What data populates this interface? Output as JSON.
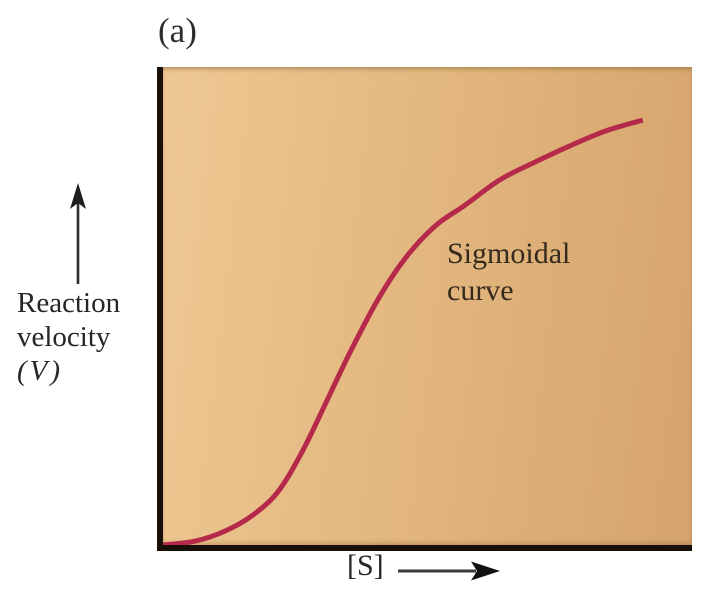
{
  "figure": {
    "panel_label": "(a)"
  },
  "y_axis": {
    "label_lines": [
      "Reaction",
      "velocity",
      "(V)"
    ],
    "arrow_icon": "up-arrow"
  },
  "x_axis": {
    "label": "[S]",
    "arrow_icon": "right-arrow"
  },
  "annotation": {
    "line1": "Sigmoidal",
    "line2": "curve"
  },
  "colors": {
    "curve": "#b5294a",
    "plot_gradient_start": "#eec893",
    "plot_gradient_end": "#d5a46c",
    "axis": "#181008",
    "text": "#2b2723"
  },
  "chart_data": {
    "type": "line",
    "title": "",
    "xlabel": "[S]",
    "ylabel": "Reaction velocity (V)",
    "panel": "(a)",
    "legend": false,
    "grid": false,
    "xlim": [
      0,
      1
    ],
    "ylim": [
      0,
      1
    ],
    "axis_scale_note": "qualitative axes with no numeric ticks; point values are normalized 0-1 estimates read from pixels",
    "annotations": [
      "Sigmoidal curve"
    ],
    "series": [
      {
        "name": "Sigmoidal curve",
        "x": [
          0.0,
          0.06,
          0.117,
          0.168,
          0.217,
          0.263,
          0.306,
          0.354,
          0.406,
          0.458,
          0.514,
          0.571,
          0.637,
          0.703,
          0.769,
          0.836,
          0.907
        ],
        "y": [
          0.0,
          0.008,
          0.029,
          0.061,
          0.111,
          0.195,
          0.293,
          0.404,
          0.513,
          0.6,
          0.667,
          0.711,
          0.764,
          0.801,
          0.835,
          0.866,
          0.889
        ]
      }
    ]
  }
}
